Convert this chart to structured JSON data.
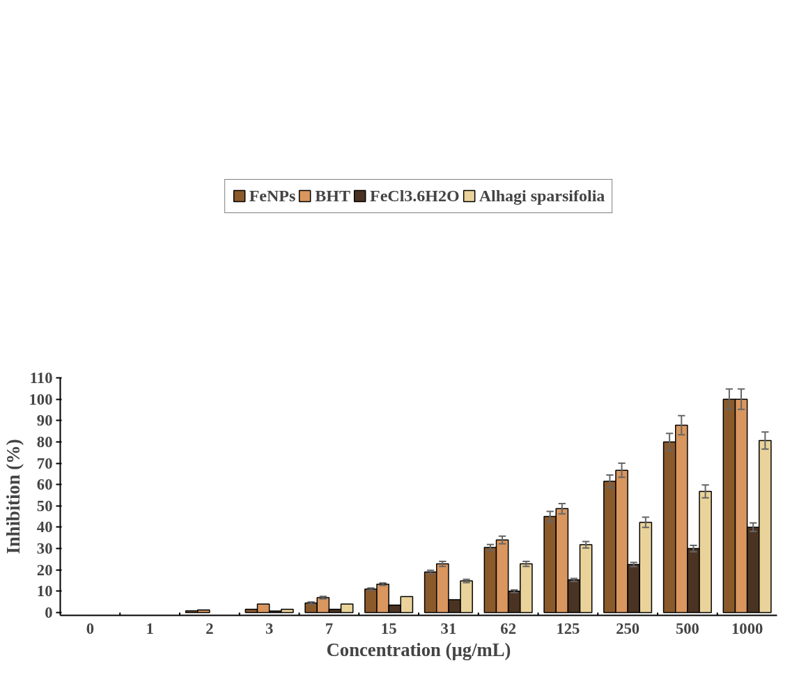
{
  "chart_data": {
    "type": "bar",
    "xlabel": "Concentration (µg/mL)",
    "ylabel": "Inhibition (%)",
    "categories": [
      "0",
      "1",
      "2",
      "3",
      "7",
      "15",
      "31",
      "62",
      "125",
      "250",
      "500",
      "1000"
    ],
    "ylim": [
      0,
      110
    ],
    "yticks": [
      0,
      10,
      20,
      30,
      40,
      50,
      60,
      70,
      80,
      90,
      100,
      110
    ],
    "grid": false,
    "legend": "top",
    "series": [
      {
        "name": "FeNPs",
        "color": "#8b5a2b",
        "values": [
          null,
          null,
          0.8,
          1.5,
          4.5,
          11,
          19,
          30.5,
          45,
          61.5,
          80,
          100
        ],
        "errors": [
          null,
          null,
          null,
          null,
          0.5,
          0.5,
          0.8,
          1.4,
          2.4,
          3,
          4,
          4.8
        ]
      },
      {
        "name": "BHT",
        "color": "#d9965e",
        "values": [
          null,
          null,
          1.2,
          4,
          7,
          13.3,
          22.8,
          34,
          48.7,
          66.7,
          87.8,
          100
        ],
        "errors": [
          null,
          null,
          null,
          null,
          0.6,
          0.6,
          1.2,
          1.8,
          2.4,
          3.3,
          4.5,
          4.8
        ]
      },
      {
        "name": "FeCl3.6H2O",
        "color": "#4a3322",
        "values": [
          null,
          null,
          null,
          0.7,
          1.5,
          3.5,
          6,
          10,
          15.3,
          22.5,
          30,
          40
        ],
        "errors": [
          null,
          null,
          null,
          null,
          null,
          null,
          null,
          0.6,
          0.7,
          1,
          1.5,
          2
        ]
      },
      {
        "name": "Alhagi sparsifolia",
        "color": "#ead39a",
        "values": [
          null,
          null,
          null,
          1.5,
          4,
          7.5,
          14.8,
          22.8,
          31.8,
          42.3,
          56.8,
          80.6
        ],
        "errors": [
          null,
          null,
          null,
          null,
          null,
          null,
          0.8,
          1.2,
          1.5,
          2.4,
          3,
          4
        ]
      }
    ]
  }
}
